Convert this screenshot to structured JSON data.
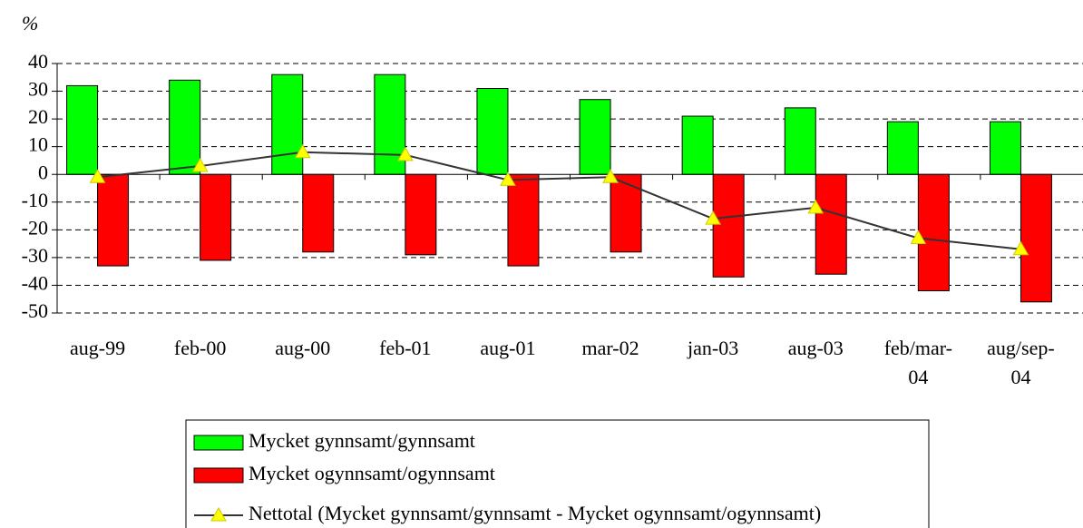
{
  "chart_data": {
    "type": "bar",
    "y_label": "%",
    "categories": [
      "aug-99",
      "feb-00",
      "aug-00",
      "feb-01",
      "aug-01",
      "mar-02",
      "jan-03",
      "aug-03",
      "feb/mar-04",
      "aug/sep-04"
    ],
    "series": [
      {
        "name": "Mycket gynnsamt/gynnsamt",
        "color": "#00ff00",
        "type": "bar",
        "values": [
          32,
          34,
          36,
          36,
          31,
          27,
          21,
          24,
          19,
          19
        ]
      },
      {
        "name": "Mycket ogynnsamt/ogynnsamt",
        "color": "#ff0000",
        "type": "bar",
        "values": [
          -33,
          -31,
          -28,
          -29,
          -33,
          -28,
          -37,
          -36,
          -42,
          -46
        ]
      },
      {
        "name": "Nettotal (Mycket gynnsamt/gynnsamt - Mycket ogynnsamt/ogynnsamt)",
        "color": "#333333",
        "marker_color": "#ffff00",
        "type": "line",
        "values": [
          -1,
          3,
          8,
          7,
          -2,
          -1,
          -16,
          -12,
          -23,
          -27
        ]
      }
    ],
    "ylim": [
      -50,
      40
    ],
    "yticks": [
      -50,
      -40,
      -30,
      -20,
      -10,
      0,
      10,
      20,
      30,
      40
    ],
    "grid": true
  }
}
